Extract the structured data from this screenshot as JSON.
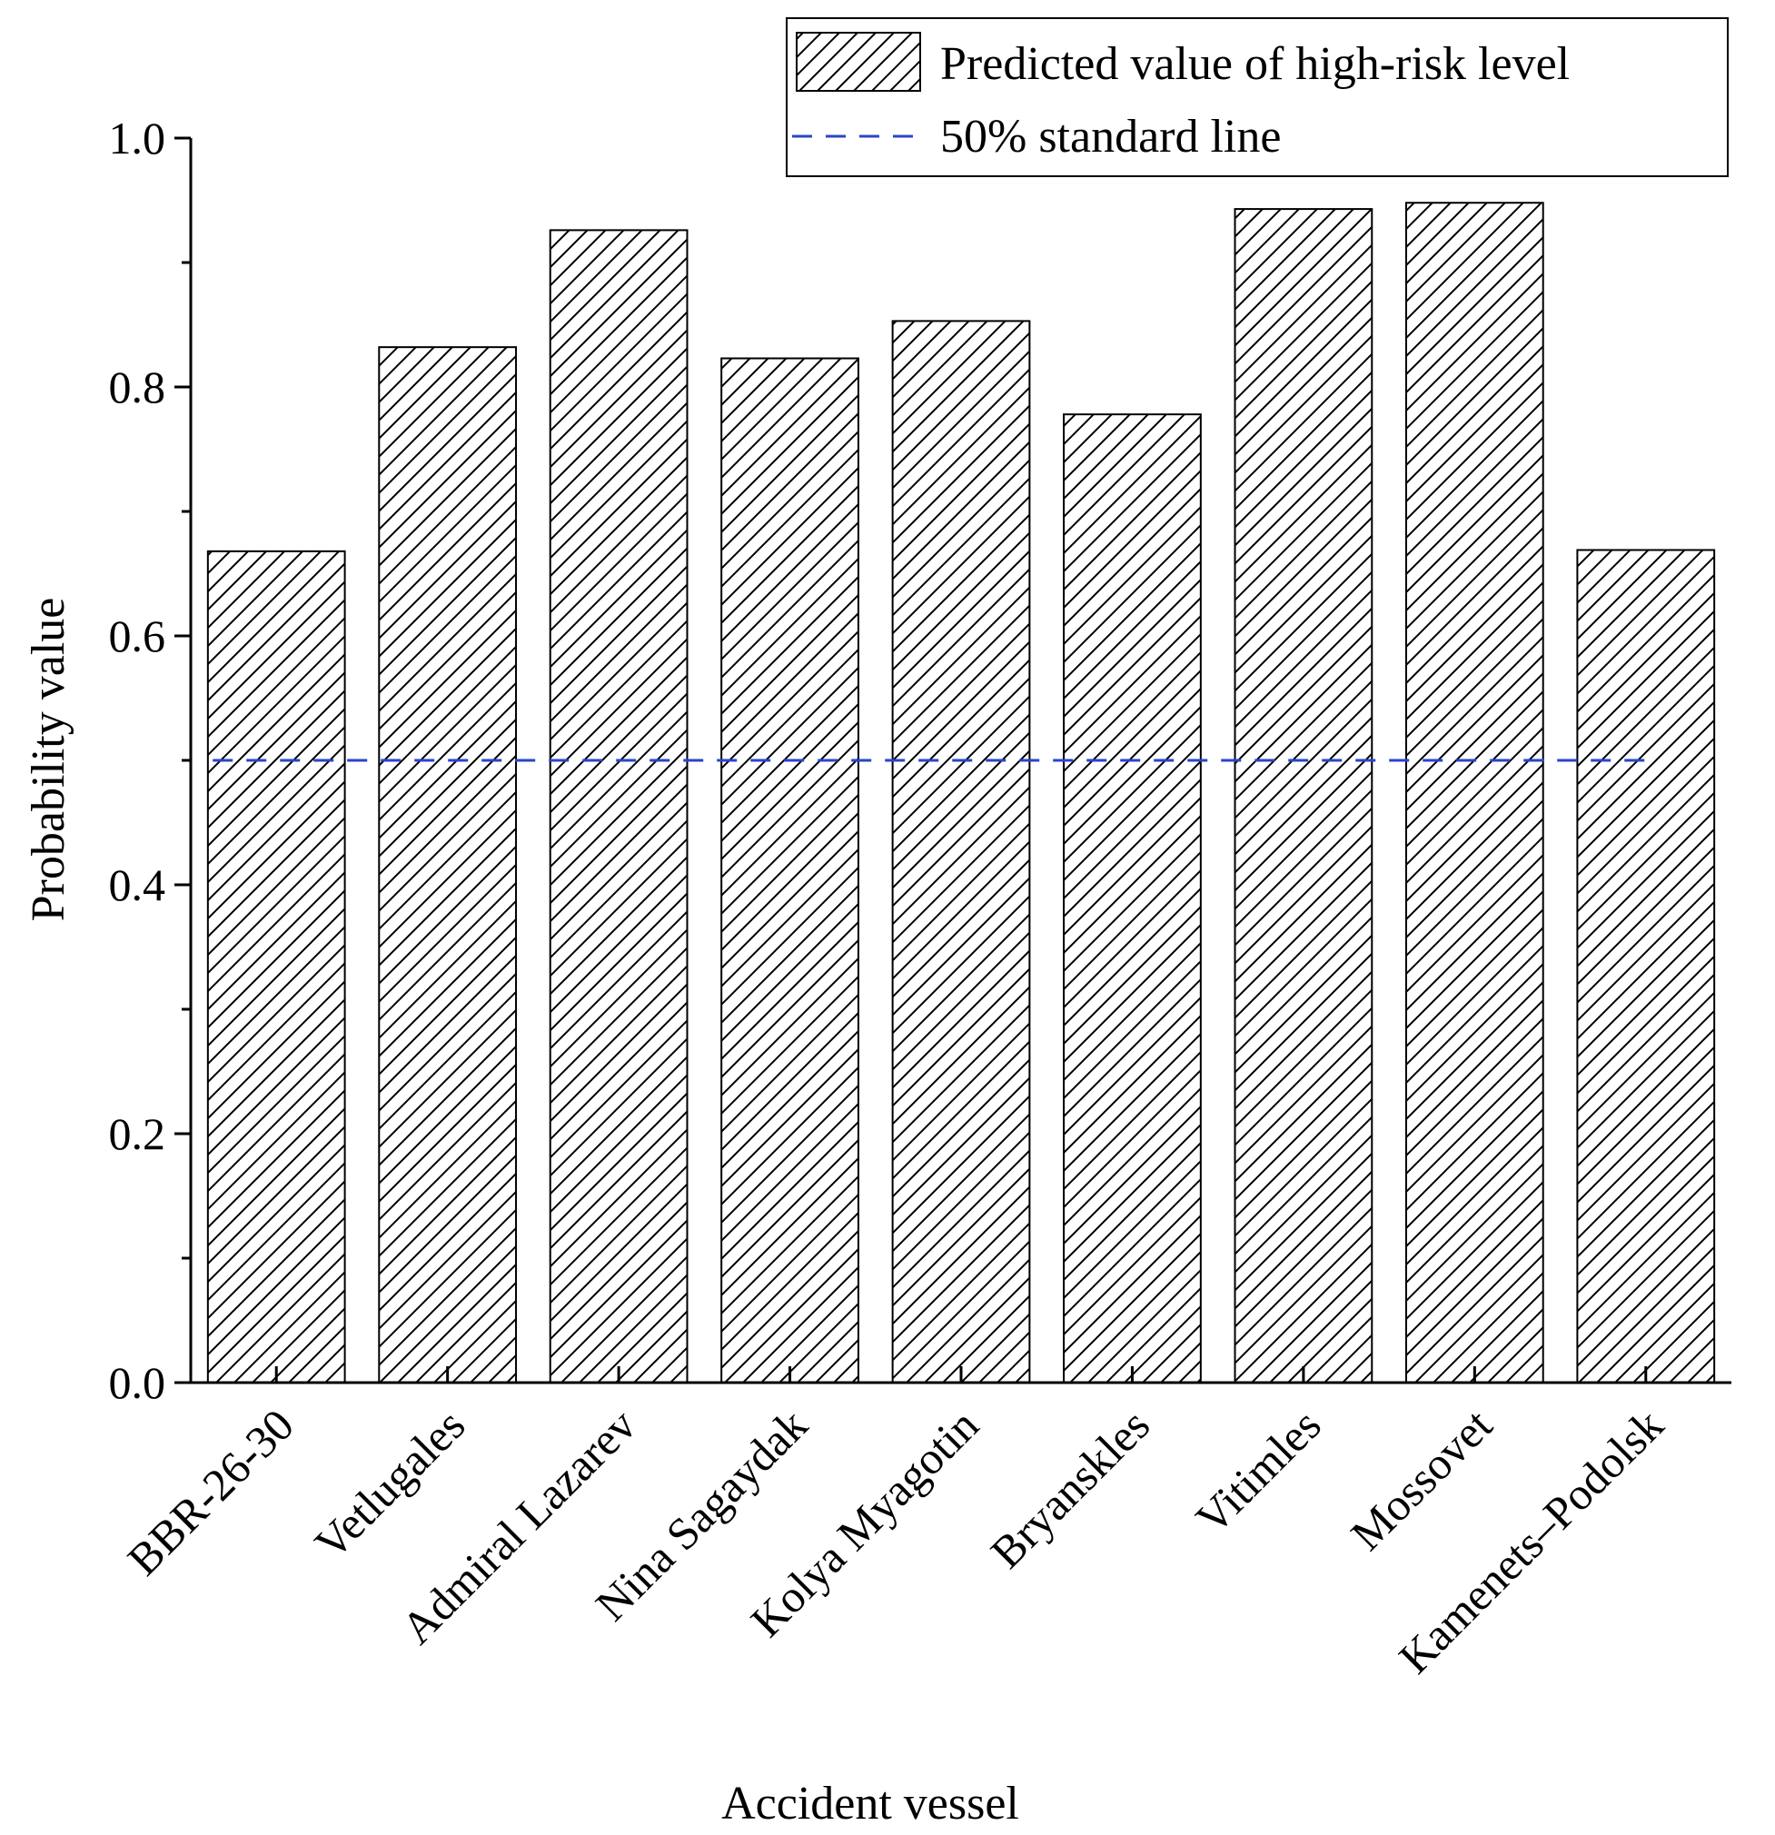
{
  "chart_data": {
    "type": "bar",
    "xlabel": "Accident vessel",
    "ylabel": "Probability value",
    "ylim": [
      0.0,
      1.0
    ],
    "yticks": [
      0.0,
      0.2,
      0.4,
      0.6,
      0.8,
      1.0
    ],
    "ytick_labels": [
      "0.0",
      "0.2",
      "0.4",
      "0.6",
      "0.8",
      "1.0"
    ],
    "categories": [
      "BBR-26-30",
      "Vetlugales",
      "Admiral Lazarev",
      "Nina Sagaydak",
      "Kolya Myagotin",
      "Bryanskles",
      "Vitimles",
      "Mossovet",
      "Kamenets–Podolsk"
    ],
    "series": [
      {
        "name": "Predicted value of high-risk level",
        "pattern": "diagonal-hatch",
        "values": [
          0.668,
          0.832,
          0.926,
          0.823,
          0.853,
          0.778,
          0.943,
          0.948,
          0.669
        ]
      }
    ],
    "reference_line": {
      "name": "50% standard line",
      "value": 0.5,
      "color": "#2a45c8",
      "style": "dashed"
    },
    "legend": {
      "position": "top-right",
      "entries": [
        "Predicted value of high-risk level",
        "50% standard line"
      ]
    },
    "grid": false
  }
}
